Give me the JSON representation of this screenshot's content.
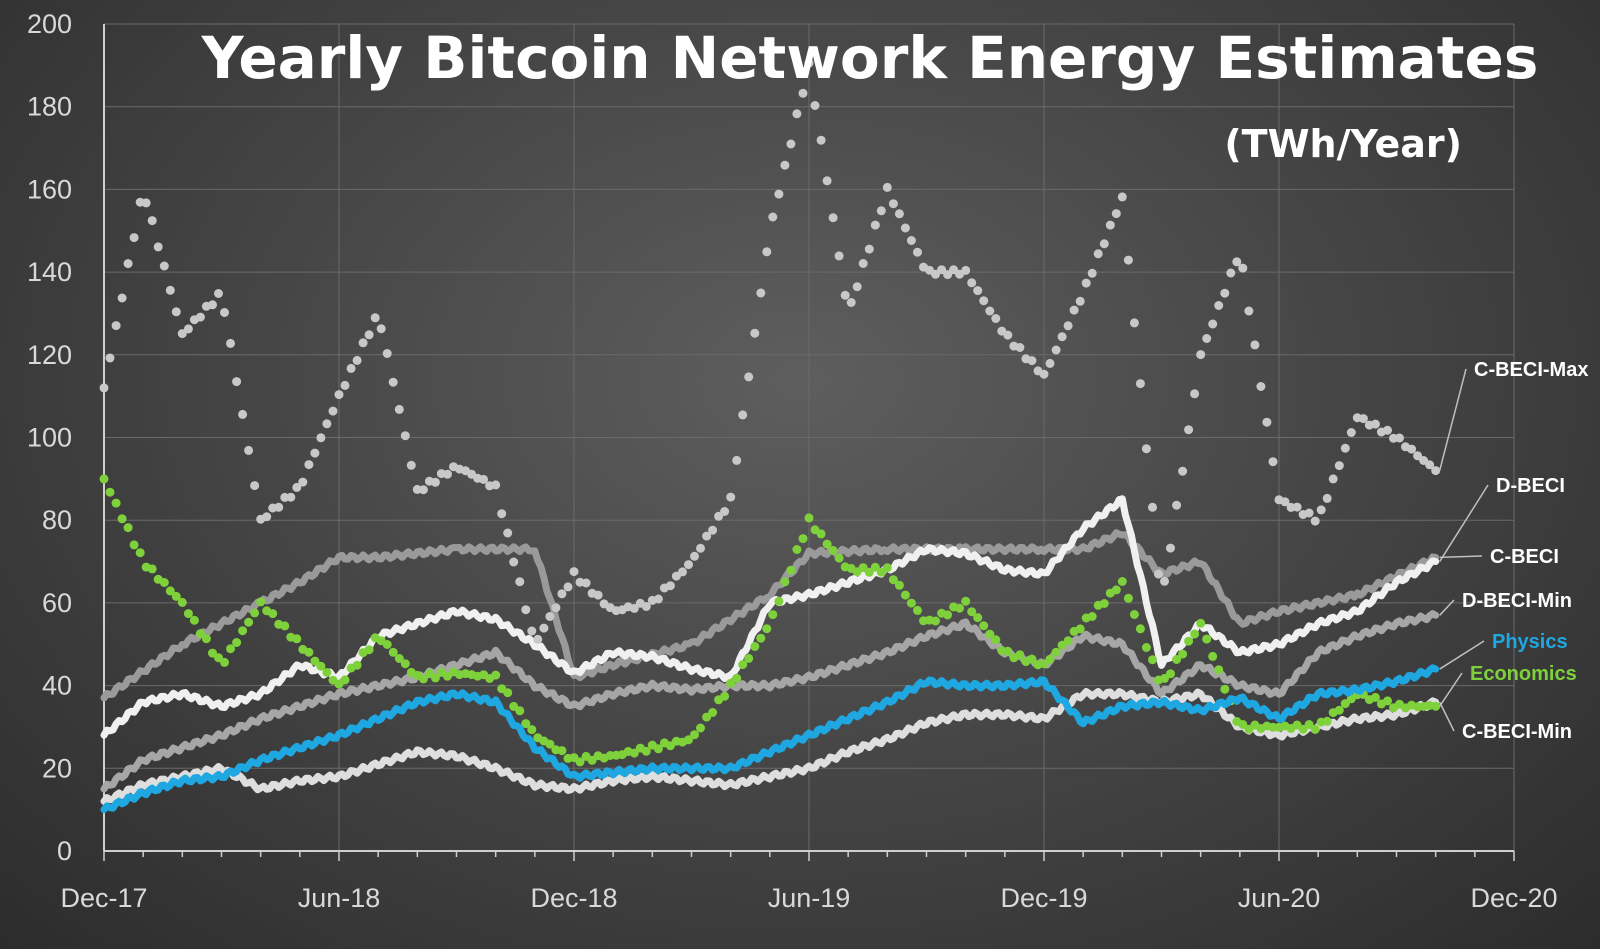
{
  "chart_data": {
    "type": "line",
    "title": "Yearly Bitcoin Network Energy Estimates",
    "subtitle": "(TWh/Year)",
    "xlabel": "",
    "ylabel": "",
    "ylim": [
      0,
      200
    ],
    "yticks": [
      "0",
      "20",
      "40",
      "60",
      "80",
      "100",
      "120",
      "140",
      "160",
      "180",
      "200"
    ],
    "xticks": [
      "Dec-17",
      "Jun-18",
      "Dec-18",
      "Jun-19",
      "Dec-19",
      "Jun-20",
      "Dec-20"
    ],
    "grid": true,
    "legend_placement": "right, labels at series ends",
    "series": [
      {
        "name": "C-BECI-Max",
        "color": "#c8c8c8",
        "style": "dotted",
        "x": [
          "2017-12",
          "2018-01",
          "2018-02",
          "2018-03",
          "2018-04",
          "2018-05",
          "2018-06",
          "2018-07",
          "2018-08",
          "2018-09",
          "2018-10",
          "2018-11",
          "2018-12",
          "2019-01",
          "2019-02",
          "2019-03",
          "2019-04",
          "2019-05",
          "2019-06",
          "2019-07",
          "2019-08",
          "2019-09",
          "2019-10",
          "2019-11",
          "2019-12",
          "2020-01",
          "2020-02",
          "2020-03",
          "2020-04",
          "2020-05",
          "2020-06",
          "2020-07",
          "2020-08",
          "2020-09",
          "2020-10"
        ],
        "values": [
          112,
          160,
          125,
          135,
          80,
          88,
          110,
          130,
          87,
          93,
          88,
          50,
          67,
          58,
          60,
          70,
          85,
          150,
          190,
          130,
          160,
          140,
          140,
          125,
          115,
          135,
          158,
          60,
          120,
          145,
          85,
          80,
          105,
          100,
          92
        ]
      },
      {
        "name": "D-BECI",
        "color": "#f0f0f0",
        "style": "thick",
        "x": [
          "2017-12",
          "2018-01",
          "2018-02",
          "2018-03",
          "2018-04",
          "2018-05",
          "2018-06",
          "2018-07",
          "2018-08",
          "2018-09",
          "2018-10",
          "2018-11",
          "2018-12",
          "2019-01",
          "2019-02",
          "2019-03",
          "2019-04",
          "2019-05",
          "2019-06",
          "2019-07",
          "2019-08",
          "2019-09",
          "2019-10",
          "2019-11",
          "2019-12",
          "2020-01",
          "2020-02",
          "2020-03",
          "2020-04",
          "2020-05",
          "2020-06",
          "2020-07",
          "2020-08",
          "2020-09",
          "2020-10"
        ],
        "values": [
          28,
          36,
          38,
          35,
          38,
          45,
          42,
          52,
          55,
          58,
          56,
          50,
          43,
          48,
          47,
          44,
          42,
          60,
          62,
          65,
          68,
          73,
          72,
          68,
          67,
          78,
          85,
          45,
          55,
          48,
          50,
          55,
          58,
          65,
          70
        ]
      },
      {
        "name": "C-BECI",
        "color": "#9a9a9a",
        "style": "thick",
        "x": [
          "2017-12",
          "2018-02",
          "2018-04",
          "2018-05",
          "2018-06",
          "2018-07",
          "2018-09",
          "2018-11",
          "2018-12",
          "2019-01",
          "2019-03",
          "2019-05",
          "2019-06",
          "2019-08",
          "2019-10",
          "2019-12",
          "2020-01",
          "2020-02",
          "2020-03",
          "2020-04",
          "2020-05",
          "2020-06",
          "2020-08",
          "2020-10"
        ],
        "values": [
          37,
          50,
          60,
          65,
          71,
          71,
          73,
          73,
          42,
          45,
          50,
          62,
          72,
          73,
          73,
          73,
          73,
          77,
          67,
          70,
          55,
          58,
          62,
          71
        ]
      },
      {
        "name": "D-BECI-Min",
        "color": "#a6a6a6",
        "style": "thick",
        "x": [
          "2017-12",
          "2018-01",
          "2018-02",
          "2018-03",
          "2018-04",
          "2018-05",
          "2018-06",
          "2018-07",
          "2018-08",
          "2018-09",
          "2018-10",
          "2018-11",
          "2018-12",
          "2019-01",
          "2019-02",
          "2019-03",
          "2019-04",
          "2019-05",
          "2019-06",
          "2019-07",
          "2019-08",
          "2019-09",
          "2019-10",
          "2019-11",
          "2019-12",
          "2020-01",
          "2020-02",
          "2020-03",
          "2020-04",
          "2020-05",
          "2020-06",
          "2020-07",
          "2020-08",
          "2020-09",
          "2020-10"
        ],
        "values": [
          15,
          22,
          25,
          28,
          32,
          35,
          38,
          40,
          42,
          45,
          48,
          40,
          35,
          38,
          40,
          39,
          40,
          40,
          42,
          45,
          48,
          52,
          55,
          48,
          45,
          52,
          50,
          38,
          45,
          40,
          38,
          48,
          52,
          55,
          57
        ]
      },
      {
        "name": "Physics",
        "color": "#1ea7e1",
        "style": "thick",
        "x": [
          "2017-12",
          "2018-01",
          "2018-02",
          "2018-03",
          "2018-04",
          "2018-05",
          "2018-06",
          "2018-07",
          "2018-08",
          "2018-09",
          "2018-10",
          "2018-11",
          "2018-12",
          "2019-01",
          "2019-02",
          "2019-03",
          "2019-04",
          "2019-05",
          "2019-06",
          "2019-07",
          "2019-08",
          "2019-09",
          "2019-10",
          "2019-11",
          "2019-12",
          "2020-01",
          "2020-02",
          "2020-03",
          "2020-04",
          "2020-05",
          "2020-06",
          "2020-07",
          "2020-08",
          "2020-09",
          "2020-10"
        ],
        "values": [
          10,
          14,
          17,
          18,
          22,
          25,
          28,
          32,
          36,
          38,
          36,
          25,
          18,
          19,
          20,
          20,
          20,
          24,
          28,
          32,
          36,
          41,
          40,
          40,
          41,
          31,
          35,
          36,
          34,
          37,
          32,
          38,
          39,
          41,
          44
        ]
      },
      {
        "name": "Economics",
        "color": "#7fd13b",
        "style": "dotted",
        "x": [
          "2017-12",
          "2018-01",
          "2018-02",
          "2018-03",
          "2018-04",
          "2018-05",
          "2018-06",
          "2018-07",
          "2018-08",
          "2018-09",
          "2018-10",
          "2018-11",
          "2018-12",
          "2019-01",
          "2019-02",
          "2019-03",
          "2019-04",
          "2019-05",
          "2019-06",
          "2019-07",
          "2019-08",
          "2019-09",
          "2019-10",
          "2019-11",
          "2019-12",
          "2020-01",
          "2020-02",
          "2020-03",
          "2020-04",
          "2020-05",
          "2020-06",
          "2020-07",
          "2020-08",
          "2020-09",
          "2020-10"
        ],
        "values": [
          90,
          70,
          60,
          45,
          60,
          50,
          40,
          52,
          42,
          43,
          42,
          28,
          22,
          23,
          25,
          27,
          40,
          55,
          80,
          68,
          68,
          55,
          60,
          48,
          45,
          55,
          65,
          40,
          55,
          30,
          30,
          30,
          38,
          35,
          35
        ]
      },
      {
        "name": "C-BECI-Min",
        "color": "#dedede",
        "style": "thick",
        "x": [
          "2017-12",
          "2018-01",
          "2018-02",
          "2018-03",
          "2018-04",
          "2018-05",
          "2018-06",
          "2018-07",
          "2018-08",
          "2018-09",
          "2018-10",
          "2018-11",
          "2018-12",
          "2019-01",
          "2019-02",
          "2019-03",
          "2019-04",
          "2019-05",
          "2019-06",
          "2019-07",
          "2019-08",
          "2019-09",
          "2019-10",
          "2019-11",
          "2019-12",
          "2020-01",
          "2020-02",
          "2020-03",
          "2020-04",
          "2020-05",
          "2020-06",
          "2020-07",
          "2020-08",
          "2020-09",
          "2020-10"
        ],
        "values": [
          12,
          16,
          18,
          20,
          15,
          17,
          18,
          21,
          24,
          23,
          20,
          16,
          15,
          17,
          18,
          17,
          16,
          18,
          20,
          24,
          27,
          31,
          33,
          33,
          32,
          38,
          38,
          36,
          38,
          30,
          28,
          30,
          32,
          33,
          36
        ]
      }
    ]
  }
}
